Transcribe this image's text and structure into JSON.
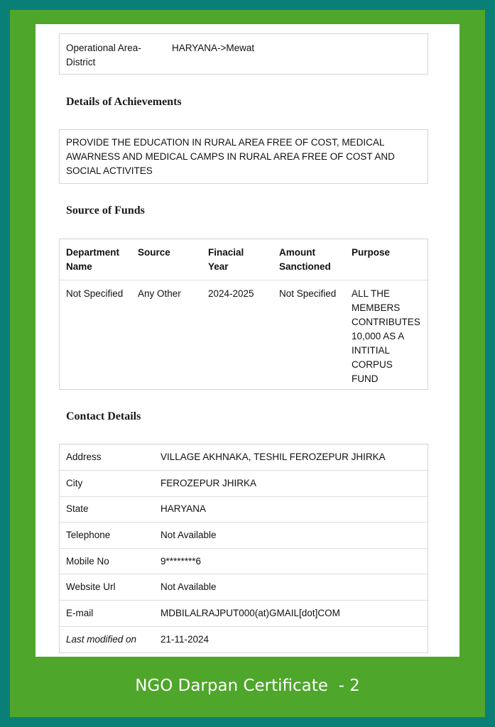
{
  "operational_area": {
    "label": "Operational Area-District",
    "value": "HARYANA->Mewat"
  },
  "achievements": {
    "heading": "Details of Achievements",
    "text": "PROVIDE THE EDUCATION IN RURAL AREA FREE OF COST, MEDICAL AWARNESS AND MEDICAL CAMPS IN RURAL AREA FREE OF COST AND SOCIAL ACTIVITES"
  },
  "funds": {
    "heading": "Source of Funds",
    "columns": [
      "Department Name",
      "Source",
      "Finacial Year",
      "Amount Sanctioned",
      "Purpose"
    ],
    "rows": [
      [
        "Not Specified",
        "Any Other",
        "2024-2025",
        "Not Specified",
        "ALL THE MEMBERS CONTRIBUTES 10,000 AS A INTITIAL CORPUS FUND"
      ]
    ]
  },
  "contact": {
    "heading": "Contact Details",
    "rows": [
      {
        "label": "Address",
        "value": "VILLAGE AKHNAKA, TESHIL FEROZEPUR JHIRKA"
      },
      {
        "label": "City",
        "value": "FEROZEPUR JHIRKA"
      },
      {
        "label": "State",
        "value": "HARYANA"
      },
      {
        "label": "Telephone",
        "value": "Not Available"
      },
      {
        "label": "Mobile No",
        "value": "9********6"
      },
      {
        "label": "Website Url",
        "value": "Not Available"
      },
      {
        "label": "E-mail",
        "value": "MDBILALRAJPUT000(at)GMAIL[dot]COM"
      },
      {
        "label": "Last modified on",
        "value": "21-11-2024"
      }
    ]
  },
  "caption": "NGO Darpan Certificate  - 2",
  "colors": {
    "outer": "#0a7f78",
    "frame": "#4ea62a"
  }
}
